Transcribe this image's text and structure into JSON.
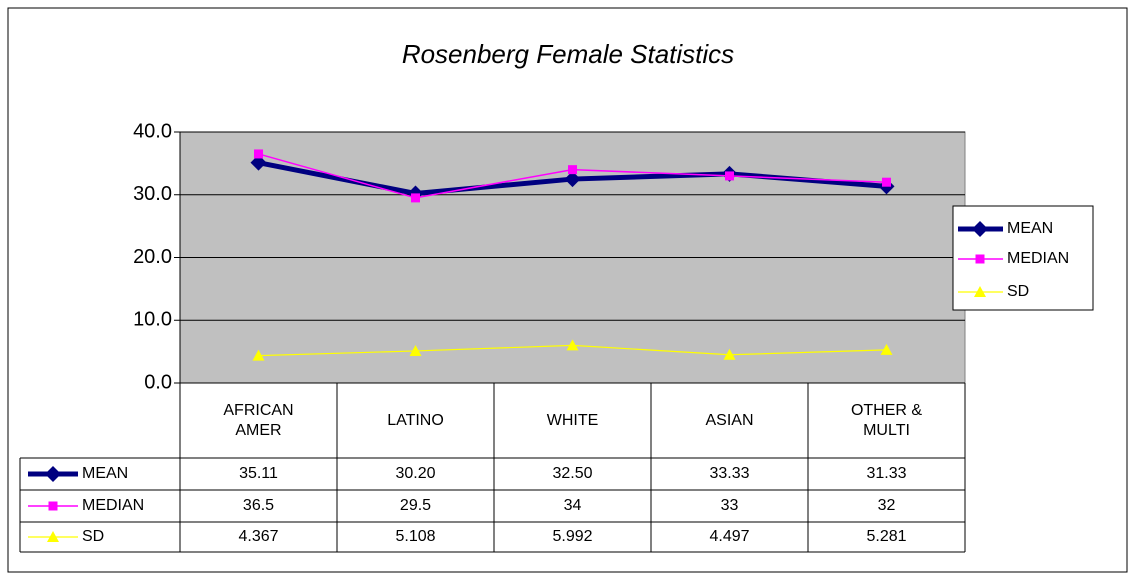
{
  "chart_data": {
    "type": "line",
    "title": "Rosenberg Female Statistics",
    "categories": [
      "AFRICAN AMER",
      "LATINO",
      "WHITE",
      "ASIAN",
      "OTHER & MULTI"
    ],
    "series": [
      {
        "name": "MEAN",
        "color": "#000080",
        "values": [
          35.11,
          30.2,
          32.5,
          33.33,
          31.33
        ],
        "value_labels": [
          "35.11",
          "30.20",
          "32.50",
          "33.33",
          "31.33"
        ],
        "marker": "diamond"
      },
      {
        "name": "MEDIAN",
        "color": "#ff00ff",
        "values": [
          36.5,
          29.5,
          34,
          33,
          32
        ],
        "marker": "square"
      },
      {
        "name": "SD",
        "color": "#ffff00",
        "values": [
          4.367,
          5.108,
          5.992,
          4.497,
          5.281
        ],
        "marker": "triangle"
      }
    ],
    "ylim": [
      0,
      40
    ],
    "yticks": [
      {
        "value": 0,
        "label": "0.0"
      },
      {
        "value": 10,
        "label": "10.0"
      },
      {
        "value": 20,
        "label": "20.0"
      },
      {
        "value": 30,
        "label": "30.0"
      },
      {
        "value": 40,
        "label": "40.0"
      }
    ],
    "grid": true,
    "legend": "right",
    "plot_background": "#c0c0c0"
  }
}
